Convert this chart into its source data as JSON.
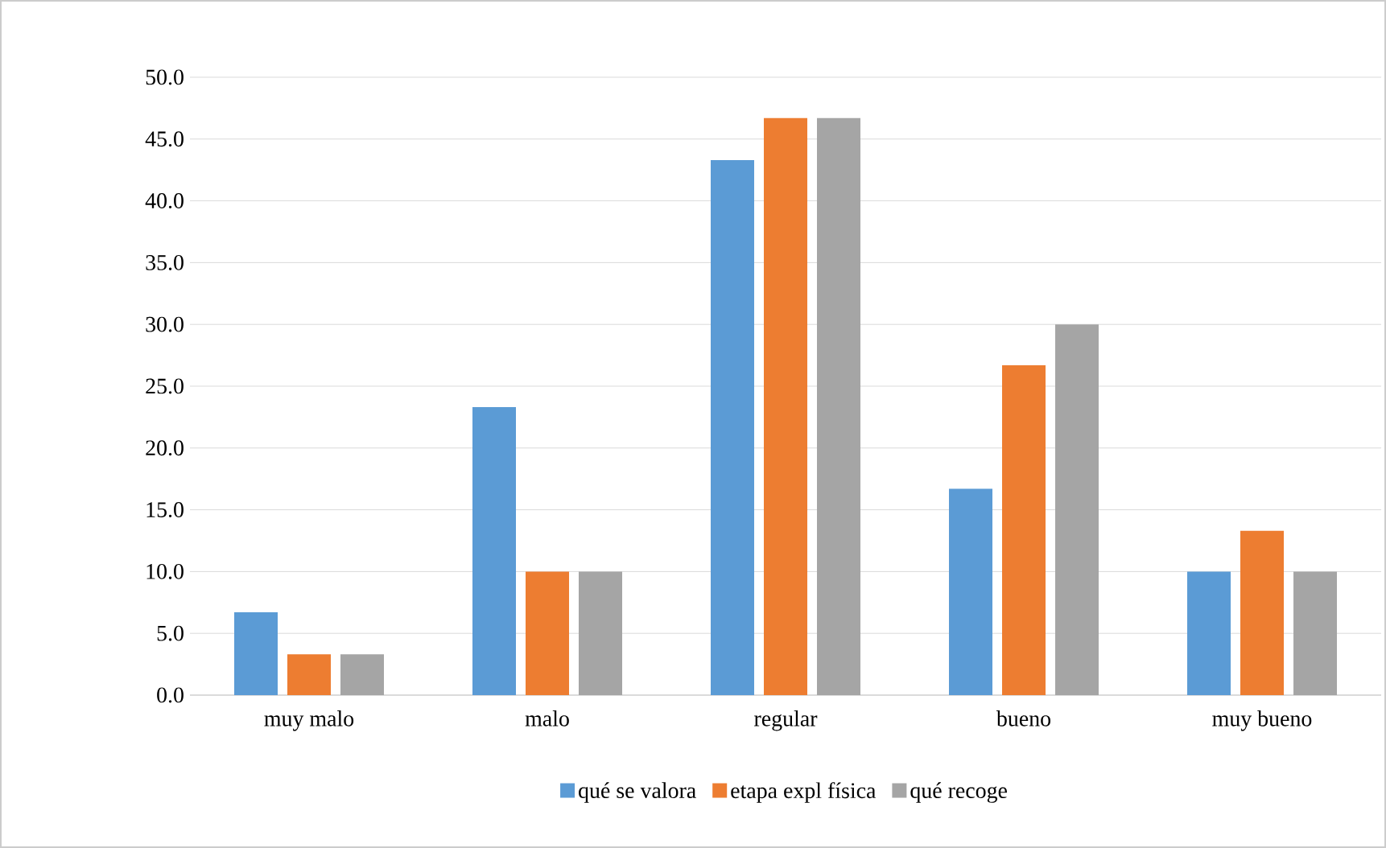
{
  "chart_data": {
    "type": "bar",
    "categories": [
      "muy malo",
      "malo",
      "regular",
      "bueno",
      "muy bueno"
    ],
    "series": [
      {
        "name": "qué se valora",
        "color": "#5b9bd5",
        "values": [
          6.7,
          23.3,
          43.3,
          16.7,
          10.0
        ]
      },
      {
        "name": "etapa expl física",
        "color": "#ed7d31",
        "values": [
          3.3,
          10.0,
          46.7,
          26.7,
          13.3
        ]
      },
      {
        "name": "qué recoge",
        "color": "#a5a5a5",
        "values": [
          3.3,
          10.0,
          46.7,
          30.0,
          10.0
        ]
      }
    ],
    "ylim": [
      0,
      50
    ],
    "yticks": [
      {
        "value": 0,
        "label": "0.0"
      },
      {
        "value": 5,
        "label": "5.0"
      },
      {
        "value": 10,
        "label": "10.0"
      },
      {
        "value": 15,
        "label": "15.0"
      },
      {
        "value": 20,
        "label": "20.0"
      },
      {
        "value": 25,
        "label": "25.0"
      },
      {
        "value": 30,
        "label": "30.0"
      },
      {
        "value": 35,
        "label": "35.0"
      },
      {
        "value": 40,
        "label": "40.0"
      },
      {
        "value": 45,
        "label": "45.0"
      },
      {
        "value": 50,
        "label": "50.0"
      }
    ],
    "grid": "y",
    "legend": "bottom"
  }
}
